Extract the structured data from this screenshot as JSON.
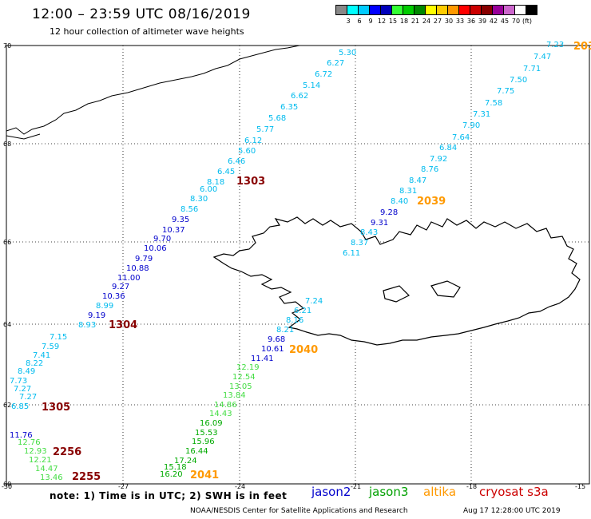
{
  "header": {
    "title": "12:00 – 23:59 UTC 08/16/2019",
    "subtitle": "12 hour collection of altimeter wave heights"
  },
  "colorbar": {
    "colors": [
      "#888888",
      "#00ffff",
      "#00ccff",
      "#0000ff",
      "#0000bb",
      "#33ff33",
      "#00cc00",
      "#008800",
      "#ffff00",
      "#ffcc00",
      "#ff9900",
      "#ff0000",
      "#cc0000",
      "#880000",
      "#990099",
      "#cc66cc",
      "#ffffff",
      "#000000"
    ],
    "labels": [
      "3",
      "6",
      "9",
      "12",
      "15",
      "18",
      "21",
      "24",
      "27",
      "30",
      "33",
      "36",
      "39",
      "42",
      "45",
      "70",
      "(ft)"
    ]
  },
  "axes": {
    "lon_labels": [
      "-30",
      "-27",
      "-24",
      "-21",
      "-18",
      "-15"
    ],
    "lat_labels": [
      "70",
      "68",
      "66",
      "64",
      "62",
      "60"
    ]
  },
  "passes": [
    {
      "label": "2039",
      "satellite": "altika"
    },
    {
      "label": "2040",
      "satellite": "altika"
    },
    {
      "label": "2041",
      "satellite": "altika"
    },
    {
      "label": "203",
      "satellite": "altika"
    },
    {
      "label": "1303",
      "satellite": "cryosat"
    },
    {
      "label": "1304",
      "satellite": "cryosat"
    },
    {
      "label": "1305",
      "satellite": "cryosat"
    },
    {
      "label": "2256",
      "satellite": "cryosat"
    },
    {
      "label": "2255",
      "satellite": "cryosat"
    }
  ],
  "tracks": {
    "track_a": [
      "5.30",
      "6.27",
      "6.72",
      "5.14",
      "6.62",
      "6.35",
      "5.68",
      "5.77",
      "6.12",
      "5.60",
      "6.46",
      "6.45",
      "8.18",
      "6.00",
      "8.30",
      "8.56",
      "9.35",
      "10.37",
      "9.70",
      "10.06",
      "9.79",
      "10.88",
      "11.00",
      "9.27",
      "10.36",
      "8.99",
      "9.19",
      "8.93"
    ],
    "track_b": [
      "7.23",
      "7.47",
      "7.71",
      "7.50",
      "7.75",
      "7.58",
      "7.31",
      "7.90",
      "7.64",
      "6.84",
      "7.92",
      "8.76",
      "8.47",
      "8.31",
      "8.40",
      "9.28",
      "9.31",
      "8.43",
      "8.37",
      "6.11"
    ],
    "track_c": [
      "7.15",
      "7.59",
      "7.41",
      "8.22",
      "8.49",
      "7.73",
      "7.27",
      "7.27",
      "6.85"
    ],
    "track_d": [
      "7.24",
      "6.21",
      "8.16",
      "8.21",
      "9.68",
      "10.61",
      "11.41",
      "12.19",
      "12.54",
      "13.05",
      "13.84",
      "14.86",
      "14.43",
      "16.09",
      "15.53",
      "15.96",
      "16.44",
      "17.24",
      "15.18",
      "16.20"
    ],
    "track_e": [
      "11.76",
      "12.76",
      "12.93",
      "12.21",
      "14.47",
      "13.46"
    ]
  },
  "footer": {
    "note": "note: 1) Time is in UTC; 2) SWH is in feet",
    "legend": {
      "jason2": "jason2",
      "jason3": "jason3",
      "altika": "altika",
      "cryosat": "cryosat s3a"
    },
    "credit": "NOAA/NESDIS Center for Satellite Applications and Research",
    "timestamp": "Aug 17 12:28:00 UTC 2019"
  }
}
